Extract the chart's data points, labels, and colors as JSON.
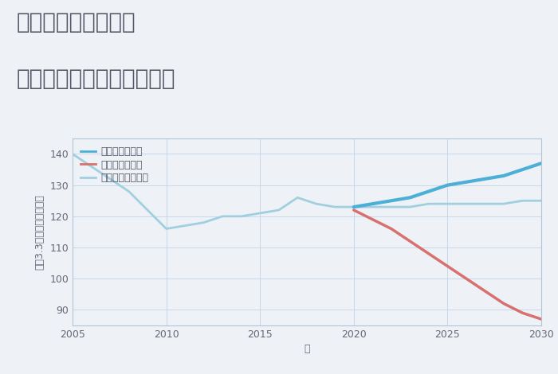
{
  "title_line1": "三重県桑名市西方の",
  "title_line2": "中古マンションの価格推移",
  "xlabel": "年",
  "ylabel": "坪（3.3㎡）単価（万円）",
  "background_color": "#eef2f7",
  "plot_background": "#eef2f7",
  "ylim": [
    85,
    145
  ],
  "xlim": [
    2005,
    2030
  ],
  "yticks": [
    90,
    100,
    110,
    120,
    130,
    140
  ],
  "xticks": [
    2005,
    2010,
    2015,
    2020,
    2025,
    2030
  ],
  "good_scenario": {
    "x": [
      2020,
      2021,
      2022,
      2023,
      2024,
      2025,
      2026,
      2027,
      2028,
      2029,
      2030
    ],
    "y": [
      123,
      124,
      125,
      126,
      128,
      130,
      131,
      132,
      133,
      135,
      137
    ],
    "color": "#4bafd6",
    "linewidth": 3,
    "label": "グッドシナリオ"
  },
  "bad_scenario": {
    "x": [
      2020,
      2021,
      2022,
      2023,
      2024,
      2025,
      2026,
      2027,
      2028,
      2029,
      2030
    ],
    "y": [
      122,
      119,
      116,
      112,
      108,
      104,
      100,
      96,
      92,
      89,
      87
    ],
    "color": "#d97070",
    "linewidth": 2.5,
    "label": "バッドシナリオ"
  },
  "normal_scenario": {
    "x": [
      2005,
      2006,
      2007,
      2008,
      2009,
      2010,
      2011,
      2012,
      2013,
      2014,
      2015,
      2016,
      2017,
      2018,
      2019,
      2020,
      2021,
      2022,
      2023,
      2024,
      2025,
      2026,
      2027,
      2028,
      2029,
      2030
    ],
    "y": [
      140,
      136,
      132,
      128,
      122,
      116,
      117,
      118,
      120,
      120,
      121,
      122,
      126,
      124,
      123,
      123,
      123,
      123,
      123,
      124,
      124,
      124,
      124,
      124,
      125,
      125
    ],
    "color": "#a0cfe0",
    "linewidth": 2,
    "label": "ノーマルシナリオ"
  },
  "legend_fontsize": 9,
  "title_fontsize": 20,
  "axis_label_fontsize": 9,
  "tick_fontsize": 9,
  "grid_color": "#c8d8e8",
  "spine_color": "#b0c4d8",
  "title_color": "#555566"
}
